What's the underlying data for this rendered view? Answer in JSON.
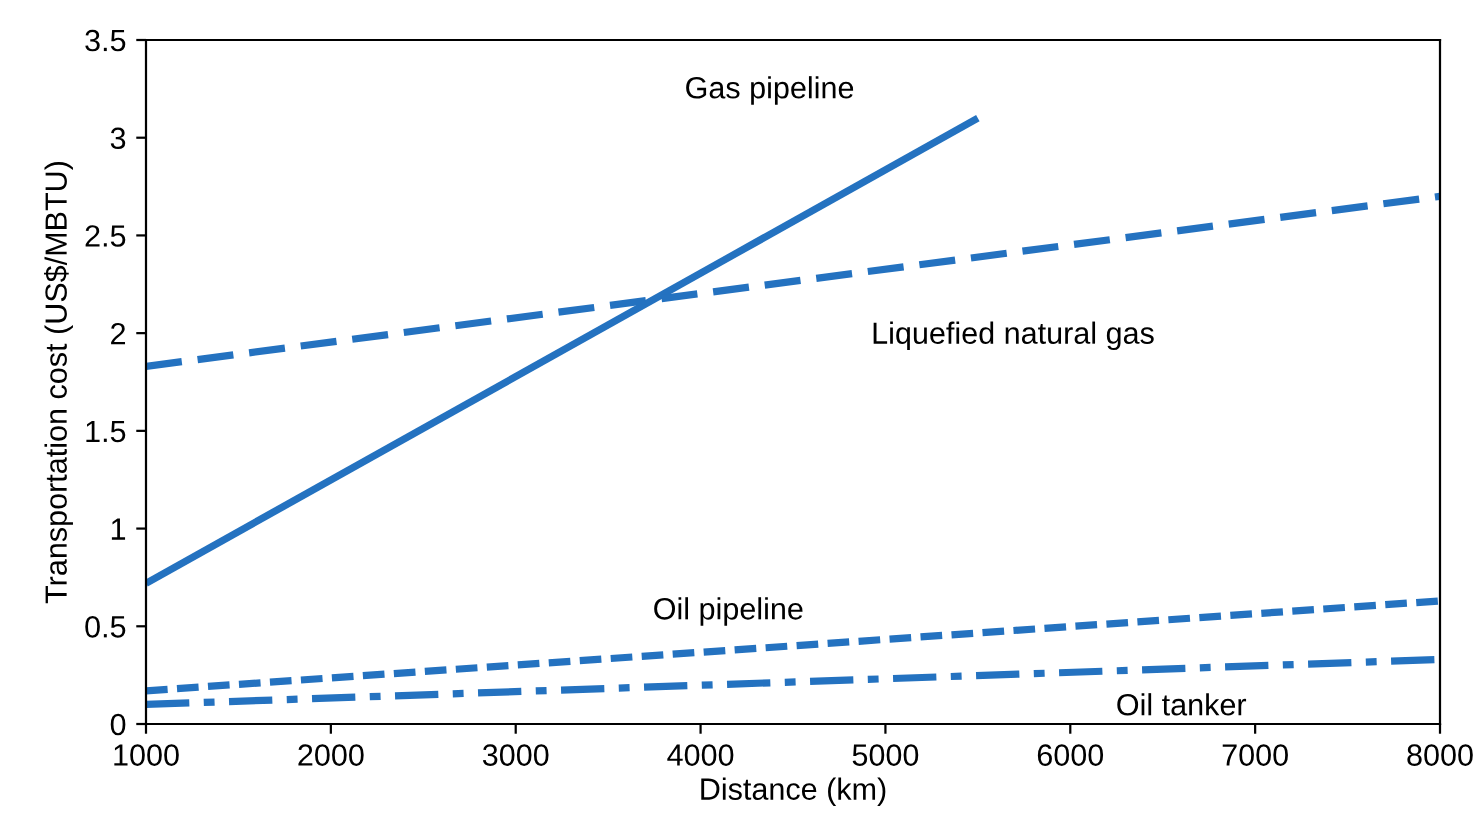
{
  "chart_data": {
    "type": "line",
    "xlabel": "Distance (km)",
    "ylabel": "Transportation cost (US$/MBTU)",
    "xlim": [
      1000,
      8000
    ],
    "xticks": [
      1000,
      2000,
      3000,
      4000,
      5000,
      6000,
      7000,
      8000
    ],
    "ylim": [
      0,
      3.5
    ],
    "yticks": [
      0,
      0.5,
      1,
      1.5,
      2,
      2.5,
      3,
      3.5
    ],
    "grid": false,
    "legend": false,
    "marker": "none",
    "series": [
      {
        "name": "Gas pipeline",
        "color": "#2472c0",
        "line_style": "solid",
        "x": [
          1000,
          5500
        ],
        "values": [
          0.72,
          3.1
        ]
      },
      {
        "name": "Liquefied natural gas",
        "color": "#2472c0",
        "line_style": "dashed",
        "x": [
          1000,
          8000
        ],
        "values": [
          1.83,
          2.7
        ]
      },
      {
        "name": "Oil pipeline",
        "color": "#2472c0",
        "line_style": "dotted",
        "x": [
          1000,
          8000
        ],
        "values": [
          0.17,
          0.63
        ]
      },
      {
        "name": "Oil tanker",
        "color": "#2472c0",
        "line_style": "dashdot",
        "x": [
          1000,
          8000
        ],
        "values": [
          0.1,
          0.33
        ]
      }
    ]
  }
}
